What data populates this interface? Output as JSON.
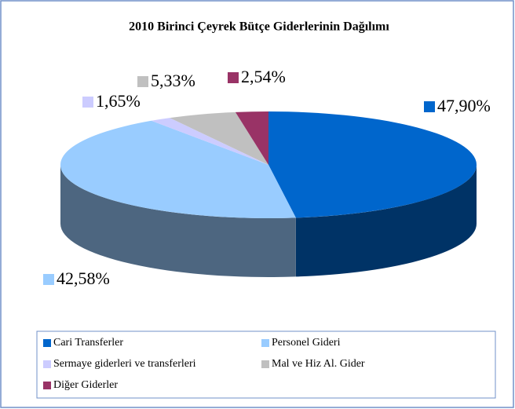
{
  "chart_data": {
    "type": "pie3d",
    "title": "2010 Birinci Çeyrek Bütçe Giderlerinin Dağılımı",
    "categories": [
      "Cari Transferler",
      "Personel Gideri",
      "Sermaye giderleri ve transferleri",
      "Mal ve Hiz Al. Gider",
      "Diğer Giderler"
    ],
    "values": [
      47.9,
      42.58,
      1.65,
      5.33,
      2.54
    ],
    "value_labels": [
      "47,90%",
      "42,58%",
      "1,65%",
      "5,33%",
      "2,54%"
    ],
    "colors": [
      "#0066cc",
      "#99ccff",
      "#ccccff",
      "#c0c0c0",
      "#993366"
    ],
    "legend": "bottom"
  }
}
